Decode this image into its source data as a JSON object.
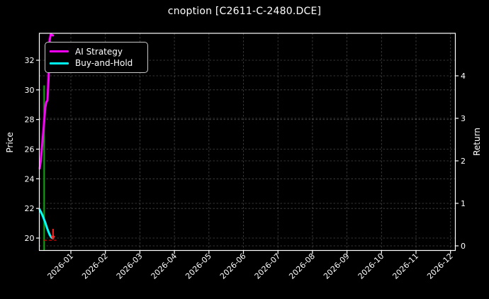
{
  "title": "cnoption [C2611-C-2480.DCE]",
  "colors": {
    "background": "#000000",
    "foreground": "#ffffff",
    "grid": "rgba(255,255,255,0.28)",
    "ai_strategy": "#ff00ff",
    "buy_and_hold": "#00ffff",
    "buy_signal": "#00b000",
    "sell_signal": "#ff2020",
    "exit_level": "#c00000"
  },
  "chart_data": {
    "type": "line",
    "title": "cnoption [C2611-C-2480.DCE]",
    "x_axis": {
      "tick_labels": [
        "2026-01",
        "2026-02",
        "2026-03",
        "2026-04",
        "2026-05",
        "2026-06",
        "2026-07",
        "2026-08",
        "2026-09",
        "2026-10",
        "2026-11",
        "2026-12"
      ]
    },
    "y_axis_left": {
      "label": "Price",
      "ticks": [
        20,
        22,
        24,
        26,
        28,
        30,
        32
      ]
    },
    "y_axis_right": {
      "label": "Return",
      "ticks": [
        0,
        1,
        2,
        3,
        4
      ]
    },
    "grid": true,
    "legend_position": "upper left",
    "series": [
      {
        "name": "Buy-and-Hold",
        "color": "#00ffff",
        "axis": "left",
        "points": [
          {
            "date": "2025-12-04",
            "value": 21.92
          },
          {
            "date": "2025-12-05",
            "value": 21.78
          },
          {
            "date": "2025-12-06",
            "value": 21.62
          },
          {
            "date": "2025-12-07",
            "value": 21.45
          },
          {
            "date": "2025-12-08",
            "value": 21.25
          },
          {
            "date": "2025-12-09",
            "value": 21.05
          },
          {
            "date": "2025-12-10",
            "value": 20.82
          },
          {
            "date": "2025-12-11",
            "value": 20.6
          },
          {
            "date": "2025-12-12",
            "value": 20.4
          },
          {
            "date": "2025-12-13",
            "value": 20.22
          },
          {
            "date": "2025-12-14",
            "value": 20.1
          },
          {
            "date": "2025-12-15",
            "value": 20.02
          },
          {
            "date": "2025-12-16",
            "value": 20.12
          }
        ]
      },
      {
        "name": "AI Strategy",
        "color": "#ff00ff",
        "axis": "right",
        "points": [
          {
            "date": "2025-12-04",
            "value": 1.82
          },
          {
            "date": "2025-12-05",
            "value": 2.0
          },
          {
            "date": "2025-12-06",
            "value": 2.3
          },
          {
            "date": "2025-12-07",
            "value": 2.6
          },
          {
            "date": "2025-12-08",
            "value": 2.9
          },
          {
            "date": "2025-12-09",
            "value": 3.25
          },
          {
            "date": "2025-12-10",
            "value": 3.38
          },
          {
            "date": "2025-12-11",
            "value": 3.42
          },
          {
            "date": "2025-12-12",
            "value": 3.95
          },
          {
            "date": "2025-12-13",
            "value": 4.85
          },
          {
            "date": "2025-12-14",
            "value": 4.97
          },
          {
            "date": "2025-12-15",
            "value": 4.96
          },
          {
            "date": "2025-12-16",
            "value": 4.95
          }
        ]
      }
    ],
    "markers": {
      "buy_line": {
        "date": "2025-12-08",
        "price_top": 30.3,
        "color": "#00b000"
      },
      "sell_marker": {
        "date": "2025-12-16",
        "price": 20.2,
        "color": "#ff2020"
      },
      "exit_level_line": {
        "price": 19.85,
        "date_start": "2025-12-08",
        "date_end": "2025-12-19",
        "color": "#c00000"
      }
    }
  }
}
